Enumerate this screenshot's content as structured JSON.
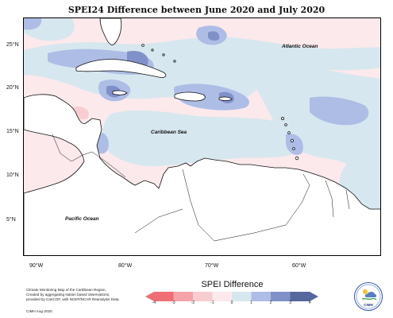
{
  "title": "SPEI24 Difference between June 2020 and July 2020",
  "lat_labels": [
    "25°N",
    "20°N",
    "15°N",
    "10°N",
    "5°N"
  ],
  "lon_labels": [
    "90°W",
    "80°W",
    "70°W",
    "60°W"
  ],
  "places": {
    "atlantic": "Atlantic Ocean",
    "caribbean": "Caribbean Sea",
    "pacific": "Pacific Ocean"
  },
  "legend": {
    "title": "SPEI Difference",
    "ticks": [
      "-4",
      "-3",
      "-2",
      "-1",
      "0",
      "1",
      "2",
      "3",
      "4"
    ],
    "colors": [
      "#ef6f74",
      "#f4a4a8",
      "#f8cdd1",
      "#fbe9ec",
      "#d7e7ef",
      "#adbde6",
      "#8090c9",
      "#56679d"
    ]
  },
  "credit_lines": [
    "Climate Monitoring Map of the Caribbean Region.",
    "Created by aggregating station based observations,",
    "provided by CariCOF, with NCEP/NCAR Reanalysis Data."
  ],
  "footer_note": "CIMH Aug-2020",
  "logo_text": "CIMH"
}
